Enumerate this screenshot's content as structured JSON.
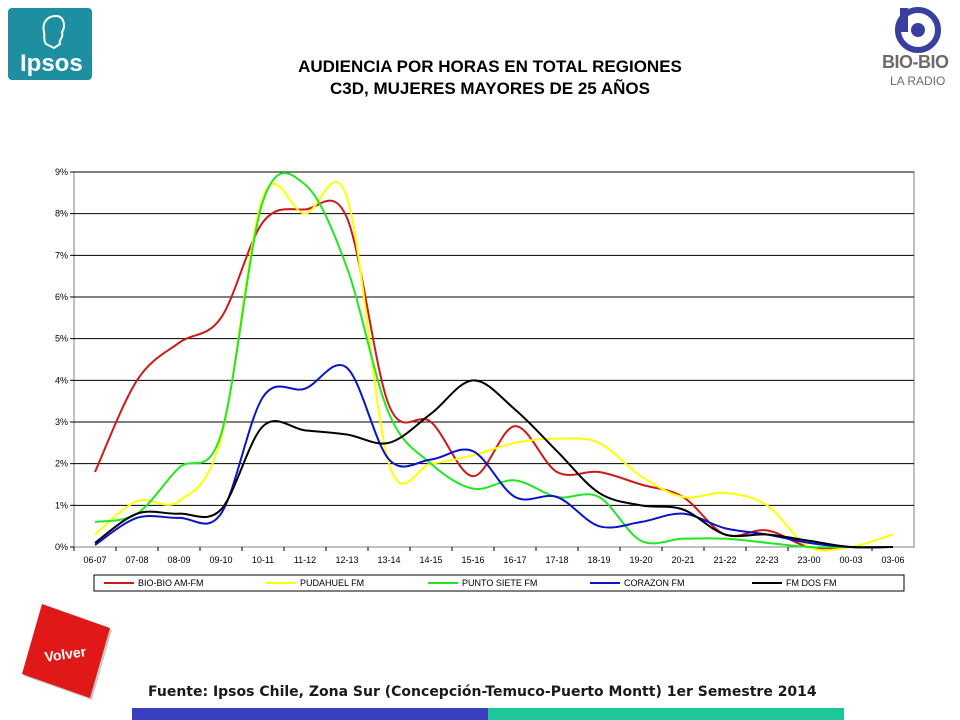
{
  "header": {
    "title_line1": "AUDIENCIA POR HORAS EN TOTAL REGIONES",
    "title_line2": "C3D, MUJERES MAYORES DE 25 AÑOS"
  },
  "logos": {
    "ipsos_text": "Ipsos",
    "biobio_text": "BIO-BIO",
    "biobio_sub": "LA RADIO"
  },
  "nav": {
    "volver_label": "Volver"
  },
  "footer": {
    "source": "Fuente: Ipsos Chile, Zona Sur (Concepción-Temuco-Puerto Montt) 1er Semestre 2014"
  },
  "chart_data": {
    "type": "line",
    "categories": [
      "06-07",
      "07-08",
      "08-09",
      "09-10",
      "10-11",
      "11-12",
      "12-13",
      "13-14",
      "14-15",
      "15-16",
      "16-17",
      "17-18",
      "18-19",
      "19-20",
      "20-21",
      "21-22",
      "22-23",
      "23-00",
      "00-03",
      "03-06"
    ],
    "yticks": [
      "0%",
      "1%",
      "2%",
      "3%",
      "4%",
      "5%",
      "6%",
      "7%",
      "8%",
      "9%"
    ],
    "ylim": [
      0,
      9
    ],
    "grid": true,
    "legend_position": "bottom",
    "series": [
      {
        "name": "BIO-BIO AM-FM",
        "color": "#d01818",
        "values": [
          1.8,
          4.0,
          4.9,
          5.5,
          7.8,
          8.1,
          7.9,
          3.4,
          3.0,
          1.7,
          2.9,
          1.8,
          1.8,
          1.5,
          1.2,
          0.3,
          0.4,
          0.0,
          0.0,
          0.0
        ]
      },
      {
        "name": "PUDAHUEL FM",
        "color": "#ffff00",
        "values": [
          0.3,
          1.1,
          1.1,
          2.6,
          8.4,
          8.0,
          8.4,
          2.0,
          2.0,
          2.2,
          2.5,
          2.6,
          2.5,
          1.7,
          1.2,
          1.3,
          1.0,
          0.0,
          0.0,
          0.3
        ]
      },
      {
        "name": "PUNTO SIETE FM",
        "color": "#22e622",
        "values": [
          0.6,
          0.8,
          1.9,
          2.7,
          8.3,
          8.7,
          6.7,
          3.2,
          2.0,
          1.4,
          1.6,
          1.2,
          1.2,
          0.15,
          0.2,
          0.2,
          0.1,
          0.0,
          0.0,
          0.0
        ]
      },
      {
        "name": "CORAZON FM",
        "color": "#0a14c8",
        "values": [
          0.05,
          0.7,
          0.7,
          0.8,
          3.6,
          3.8,
          4.3,
          2.1,
          2.1,
          2.3,
          1.2,
          1.2,
          0.5,
          0.6,
          0.8,
          0.45,
          0.3,
          0.1,
          0.0,
          0.0
        ]
      },
      {
        "name": "FM DOS FM",
        "color": "#000000",
        "values": [
          0.1,
          0.8,
          0.8,
          0.9,
          2.9,
          2.8,
          2.7,
          2.5,
          3.2,
          4.0,
          3.3,
          2.3,
          1.3,
          1.0,
          0.9,
          0.3,
          0.3,
          0.15,
          0.0,
          0.0
        ]
      }
    ]
  }
}
